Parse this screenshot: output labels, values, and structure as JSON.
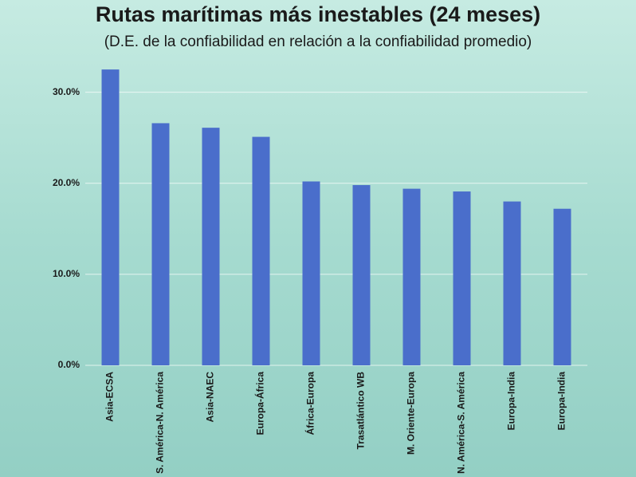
{
  "chart_data": {
    "type": "bar",
    "title": "Rutas marítimas más inestables (24 meses)",
    "subtitle": "(D.E. de la confiabilidad en relación a la confiabilidad promedio)",
    "categories": [
      "Asia-ECSA",
      "S. América-N. América",
      "Asia-NAEC",
      "Europa-África",
      "África-Europa",
      "Trasatlántico WB",
      "M. Oriente-Europa",
      "N. América-S. América",
      "Europa-India",
      "Europa-India"
    ],
    "values": [
      32.5,
      26.6,
      26.1,
      25.1,
      20.2,
      19.8,
      19.4,
      19.1,
      18.0,
      17.2
    ],
    "color": "#4a6ecb",
    "ylim": [
      0,
      34
    ],
    "yticks": [
      {
        "value": 0,
        "label": "0.0%"
      },
      {
        "value": 10,
        "label": "10.0%"
      },
      {
        "value": 20,
        "label": "20.0%"
      },
      {
        "value": 30,
        "label": "30.0%"
      }
    ],
    "grid": true
  }
}
